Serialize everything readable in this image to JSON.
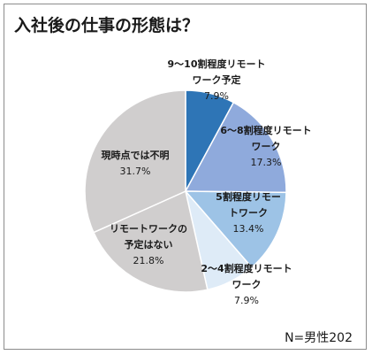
{
  "chart_data": {
    "type": "pie",
    "title": "入社後の仕事の形態は？",
    "note": "N=男性202",
    "unit": "%",
    "slices": [
      {
        "label_lines": [
          "9〜10割程度リモート",
          "ワーク予定"
        ],
        "value": 7.9,
        "value_label": "7.9%",
        "color": "#2e75b6"
      },
      {
        "label_lines": [
          "6〜8割程度リモート",
          "ワーク"
        ],
        "value": 17.3,
        "value_label": "17.3%",
        "color": "#8faadc"
      },
      {
        "label_lines": [
          "5割程度リモー",
          "トワーク"
        ],
        "value": 13.4,
        "value_label": "13.4%",
        "color": "#9dc3e6"
      },
      {
        "label_lines": [
          "2〜4割程度リモート",
          "ワーク"
        ],
        "value": 7.9,
        "value_label": "7.9%",
        "color": "#deebf7"
      },
      {
        "label_lines": [
          "リモートワークの",
          "予定はない"
        ],
        "value": 21.8,
        "value_label": "21.8%",
        "color": "#d0cece"
      },
      {
        "label_lines": [
          "現時点では不明"
        ],
        "value": 31.7,
        "value_label": "31.7%",
        "color": "#d0cece"
      }
    ]
  }
}
